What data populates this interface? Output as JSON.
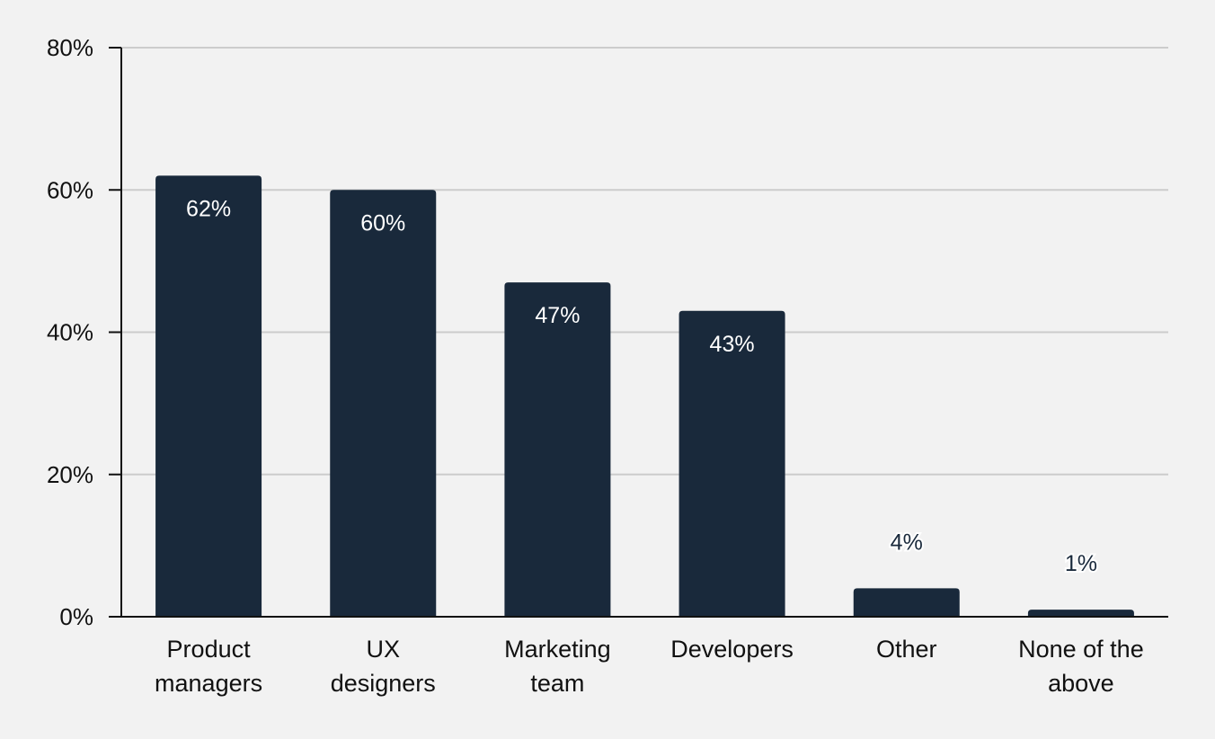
{
  "chart_data": {
    "type": "bar",
    "title": "",
    "xlabel": "",
    "ylabel": "",
    "categories": [
      [
        "Product",
        "managers"
      ],
      [
        "UX",
        "designers"
      ],
      [
        "Marketing",
        "team"
      ],
      [
        "Developers"
      ],
      [
        "Other"
      ],
      [
        "None of the",
        "above"
      ]
    ],
    "values": [
      62,
      60,
      47,
      43,
      4,
      1
    ],
    "data_labels": [
      "62%",
      "60%",
      "47%",
      "43%",
      "4%",
      "1%"
    ],
    "yticks": [
      "0%",
      "20%",
      "40%",
      "60%",
      "80%"
    ],
    "ylim": [
      0,
      80
    ],
    "grid": true,
    "colors": {
      "bar": "#19293b",
      "grid": "#cccccc",
      "axis": "#111111",
      "background": "#f2f2f2"
    }
  }
}
